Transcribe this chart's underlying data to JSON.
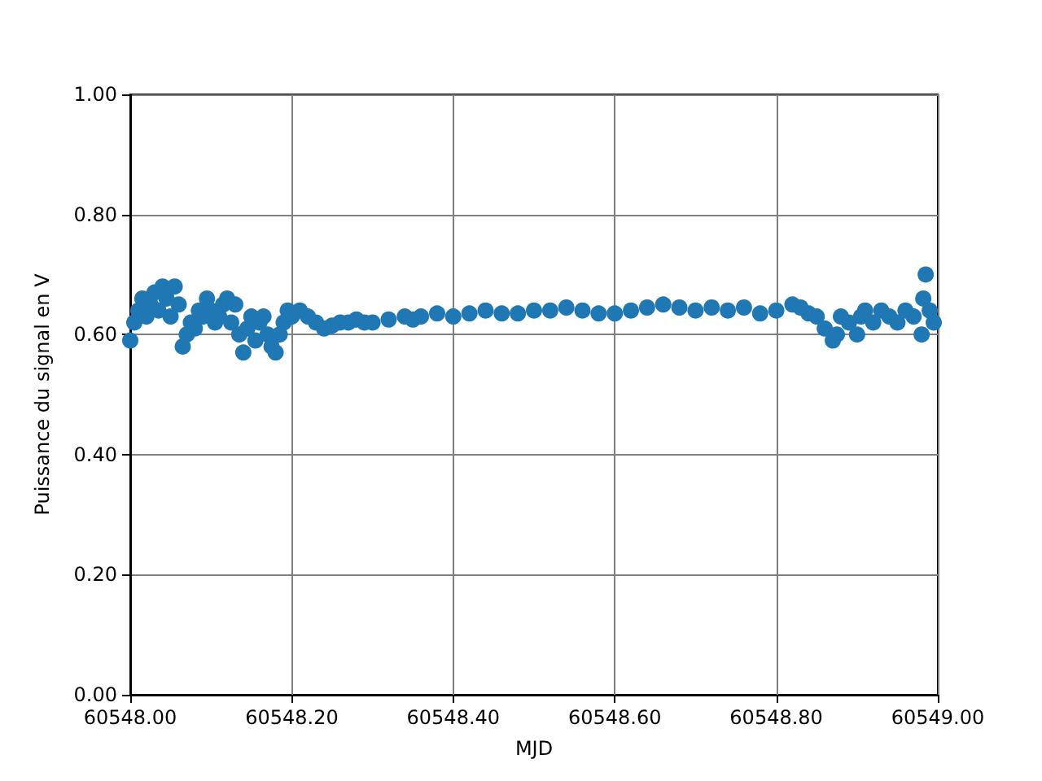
{
  "chart_data": {
    "type": "scatter",
    "xlabel": "MJD",
    "ylabel": "Puissance du signal en V",
    "marker": "circle",
    "grid": true,
    "xlim": [
      60548.0,
      60549.0
    ],
    "xticks": [
      {
        "value": 60548.0,
        "label": "60548.00"
      },
      {
        "value": 60548.2,
        "label": "60548.20"
      },
      {
        "value": 60548.4,
        "label": "60548.40"
      },
      {
        "value": 60548.6,
        "label": "60548.60"
      },
      {
        "value": 60548.8,
        "label": "60548.80"
      },
      {
        "value": 60549.0,
        "label": "60549.00"
      }
    ],
    "ylim": [
      0,
      1
    ],
    "yticks": [
      {
        "value": 0,
        "label": "0.00"
      },
      {
        "value": 0.2,
        "label": "0.20"
      },
      {
        "value": 0.4,
        "label": "0.40"
      },
      {
        "value": 0.6,
        "label": "0.60"
      },
      {
        "value": 0.8,
        "label": "0.80"
      },
      {
        "value": 1.0,
        "label": "1.00"
      }
    ],
    "series": [
      {
        "color": "#1f77b4",
        "x": [
          60548.0,
          60548.005,
          60548.01,
          60548.015,
          60548.02,
          60548.025,
          60548.03,
          60548.035,
          60548.04,
          60548.045,
          60548.05,
          60548.055,
          60548.06,
          60548.065,
          60548.07,
          60548.075,
          60548.08,
          60548.085,
          60548.09,
          60548.095,
          60548.1,
          60548.105,
          60548.11,
          60548.115,
          60548.12,
          60548.125,
          60548.13,
          60548.135,
          60548.14,
          60548.145,
          60548.15,
          60548.155,
          60548.16,
          60548.165,
          60548.17,
          60548.175,
          60548.18,
          60548.185,
          60548.19,
          60548.195,
          60548.2,
          60548.21,
          60548.22,
          60548.23,
          60548.24,
          60548.25,
          60548.26,
          60548.27,
          60548.28,
          60548.29,
          60548.3,
          60548.32,
          60548.34,
          60548.35,
          60548.36,
          60548.38,
          60548.4,
          60548.42,
          60548.44,
          60548.46,
          60548.48,
          60548.5,
          60548.52,
          60548.54,
          60548.56,
          60548.58,
          60548.6,
          60548.62,
          60548.64,
          60548.66,
          60548.68,
          60548.7,
          60548.72,
          60548.74,
          60548.76,
          60548.78,
          60548.8,
          60548.82,
          60548.83,
          60548.84,
          60548.85,
          60548.86,
          60548.87,
          60548.875,
          60548.88,
          60548.89,
          60548.9,
          60548.905,
          60548.91,
          60548.92,
          60548.93,
          60548.94,
          60548.95,
          60548.96,
          60548.97,
          60548.98,
          60548.982,
          60548.985,
          60548.99,
          60548.995
        ],
        "values": [
          0.59,
          0.62,
          0.64,
          0.66,
          0.63,
          0.65,
          0.67,
          0.64,
          0.68,
          0.66,
          0.63,
          0.68,
          0.65,
          0.58,
          0.6,
          0.62,
          0.61,
          0.64,
          0.63,
          0.66,
          0.64,
          0.62,
          0.63,
          0.65,
          0.66,
          0.62,
          0.65,
          0.6,
          0.57,
          0.61,
          0.63,
          0.59,
          0.62,
          0.63,
          0.6,
          0.58,
          0.57,
          0.6,
          0.62,
          0.64,
          0.63,
          0.64,
          0.63,
          0.62,
          0.61,
          0.615,
          0.62,
          0.62,
          0.625,
          0.62,
          0.62,
          0.625,
          0.63,
          0.625,
          0.63,
          0.635,
          0.63,
          0.635,
          0.64,
          0.635,
          0.635,
          0.64,
          0.64,
          0.645,
          0.64,
          0.635,
          0.635,
          0.64,
          0.645,
          0.65,
          0.645,
          0.64,
          0.645,
          0.64,
          0.645,
          0.635,
          0.64,
          0.65,
          0.645,
          0.635,
          0.63,
          0.61,
          0.59,
          0.6,
          0.63,
          0.62,
          0.6,
          0.63,
          0.64,
          0.62,
          0.64,
          0.63,
          0.62,
          0.64,
          0.63,
          0.6,
          0.66,
          0.7,
          0.64,
          0.62
        ]
      }
    ]
  }
}
